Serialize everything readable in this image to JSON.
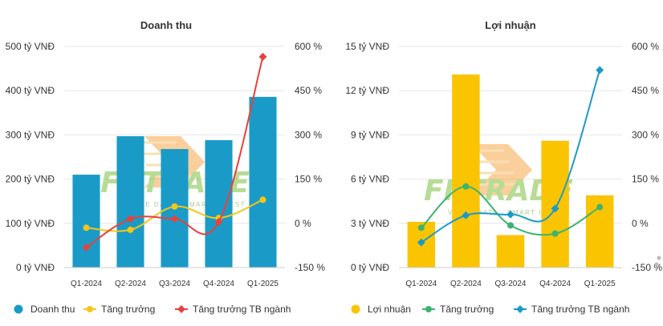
{
  "chart_data": [
    {
      "type": "bar",
      "title": "Doanh thu",
      "categories": [
        "Q1-2024",
        "Q2-2024",
        "Q3-2024",
        "Q4-2024",
        "Q1-2025"
      ],
      "y_left": {
        "ticks": [
          "0 tỷ VNĐ",
          "100 tỷ VNĐ",
          "200 tỷ VNĐ",
          "300 tỷ VNĐ",
          "400 tỷ VNĐ",
          "500 tỷ VNĐ"
        ],
        "ylim": [
          0,
          500
        ]
      },
      "y_right": {
        "ticks": [
          "-150 %",
          "0 %",
          "150 %",
          "300 %",
          "450 %",
          "600 %"
        ],
        "ylim": [
          -150,
          600
        ]
      },
      "series": [
        {
          "name": "Doanh thu",
          "kind": "bar",
          "axis": "left",
          "color": "#1a9bc7",
          "values": [
            210,
            297,
            268,
            288,
            386
          ]
        },
        {
          "name": "Tăng trưởng",
          "kind": "line",
          "axis": "right",
          "color": "#f5c518",
          "values": [
            -15,
            -22,
            57,
            18,
            80
          ]
        },
        {
          "name": "Tăng trưởng TB ngành",
          "kind": "line",
          "axis": "right",
          "color": "#e8413c",
          "values": [
            -82,
            15,
            15,
            5,
            565
          ]
        }
      ]
    },
    {
      "type": "bar",
      "title": "Lợi nhuận",
      "categories": [
        "Q1-2024",
        "Q2-2024",
        "Q3-2024",
        "Q4-2024",
        "Q1-2025"
      ],
      "y_left": {
        "ticks": [
          "0 tỷ VNĐ",
          "3 tỷ VNĐ",
          "6 tỷ VNĐ",
          "9 tỷ VNĐ",
          "12 tỷ VNĐ",
          "15 tỷ VNĐ"
        ],
        "ylim": [
          0,
          15
        ]
      },
      "y_right": {
        "ticks": [
          "-150 %",
          "0 %",
          "150 %",
          "300 %",
          "450 %",
          "600 %"
        ],
        "ylim": [
          -150,
          600
        ]
      },
      "series": [
        {
          "name": "Lợi nhuận",
          "kind": "bar",
          "axis": "left",
          "color": "#fbc400",
          "values": [
            3.1,
            13.1,
            2.2,
            8.6,
            4.9
          ]
        },
        {
          "name": "Tăng trưởng",
          "kind": "line",
          "axis": "right",
          "color": "#3cb371",
          "values": [
            -15,
            125,
            -7,
            -35,
            55
          ]
        },
        {
          "name": "Tăng trưởng TB ngành",
          "kind": "line",
          "axis": "right",
          "color": "#1a9bc7",
          "values": [
            -65,
            27,
            30,
            50,
            520
          ]
        }
      ]
    }
  ],
  "watermark": {
    "brand": "FIITRADE",
    "tagline": "VALUE DATA - SMART INVEST"
  }
}
